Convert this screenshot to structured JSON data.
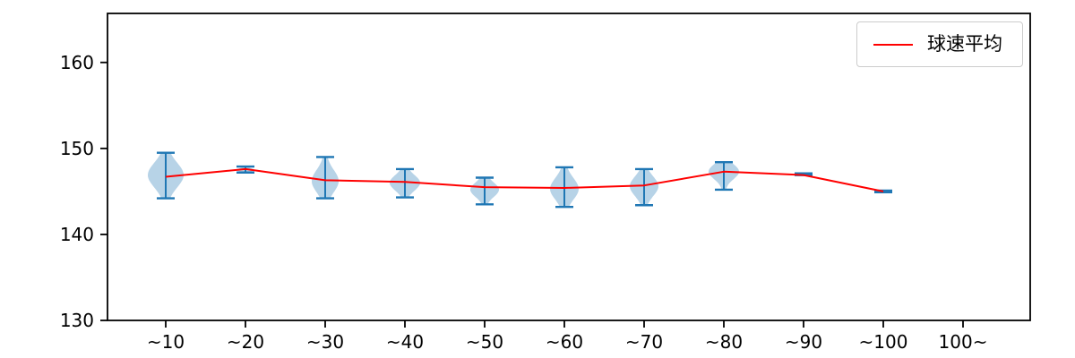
{
  "chart_data": {
    "type": "violin",
    "title": "",
    "xlabel": "",
    "ylabel": "",
    "categories": [
      "~10",
      "~20",
      "~30",
      "~40",
      "~50",
      "~60",
      "~70",
      "~80",
      "~90",
      "~100",
      "100~"
    ],
    "yticks": [
      130,
      140,
      150,
      160
    ],
    "ylim": [
      130,
      165.7
    ],
    "grid": false,
    "legend": {
      "position": "upper right",
      "entries": [
        {
          "label": "球速平均",
          "type": "line",
          "color": "#ff0000"
        }
      ]
    },
    "line_series": {
      "name": "球速平均",
      "color": "#ff0000",
      "values": [
        146.7,
        147.6,
        146.3,
        146.1,
        145.5,
        145.4,
        145.7,
        147.3,
        146.9,
        145.0,
        null
      ]
    },
    "violins": [
      {
        "category": "~10",
        "min": 144.2,
        "max": 149.5,
        "mode": 146.9,
        "width": 1.0
      },
      {
        "category": "~20",
        "min": 147.2,
        "max": 147.9,
        "mode": 147.5,
        "width": 0.5
      },
      {
        "category": "~30",
        "min": 144.2,
        "max": 149.0,
        "mode": 146.2,
        "width": 0.75
      },
      {
        "category": "~40",
        "min": 144.3,
        "max": 147.6,
        "mode": 146.0,
        "width": 0.85
      },
      {
        "category": "~50",
        "min": 143.5,
        "max": 146.6,
        "mode": 145.2,
        "width": 0.8
      },
      {
        "category": "~60",
        "min": 143.2,
        "max": 147.8,
        "mode": 145.3,
        "width": 0.8
      },
      {
        "category": "~70",
        "min": 143.4,
        "max": 147.6,
        "mode": 145.6,
        "width": 0.8
      },
      {
        "category": "~80",
        "min": 145.2,
        "max": 148.4,
        "mode": 147.3,
        "width": 0.85
      },
      {
        "category": "~90",
        "min": 146.9,
        "max": 147.1,
        "mode": 147.0,
        "width": 0.2
      },
      {
        "category": "~100",
        "min": 144.9,
        "max": 145.1,
        "mode": 145.0,
        "width": 0.2
      },
      {
        "category": "100~",
        "min": null,
        "max": null,
        "mode": null,
        "width": 0
      }
    ],
    "violin_color": "#1f77b4",
    "violin_fill_alpha": 0.32
  }
}
